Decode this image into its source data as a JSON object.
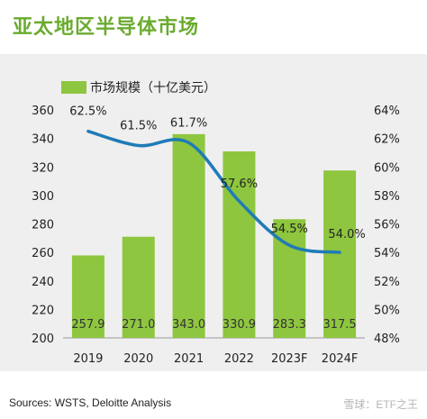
{
  "title": "亚太地区半导体市场",
  "source": "Sources: WSTS, Deloitte Analysis",
  "watermark": "雪球：ETF之王",
  "colors": {
    "title": "#6aab2e",
    "bar": "#8ec63f",
    "line": "#1f7bb6",
    "panel": "#efefef"
  },
  "chart_data": {
    "type": "bar",
    "categories": [
      "2019",
      "2020",
      "2021",
      "2022",
      "2023F",
      "2024F"
    ],
    "series": [
      {
        "name": "市场规模（十亿美元）",
        "type": "bar",
        "axis": "left",
        "values": [
          257.9,
          271.0,
          343.0,
          330.9,
          283.3,
          317.5
        ],
        "labels": [
          "257.9",
          "271.0",
          "343.0",
          "330.9",
          "283.3",
          "317.5"
        ]
      },
      {
        "type": "line",
        "axis": "right",
        "values": [
          62.5,
          61.5,
          61.7,
          57.6,
          54.5,
          54.0
        ],
        "labels": [
          "62.5%",
          "61.5%",
          "61.7%",
          "57.6%",
          "54.5%",
          "54.0%"
        ]
      }
    ],
    "ylim_left": [
      200,
      360
    ],
    "yticks_left": [
      "200",
      "220",
      "240",
      "260",
      "280",
      "300",
      "320",
      "340",
      "360"
    ],
    "ylim_right": [
      48,
      64
    ],
    "yticks_right": [
      "48%",
      "50%",
      "52%",
      "54%",
      "56%",
      "58%",
      "60%",
      "62%",
      "64%"
    ],
    "legend_position": "top-left",
    "grid": false
  }
}
